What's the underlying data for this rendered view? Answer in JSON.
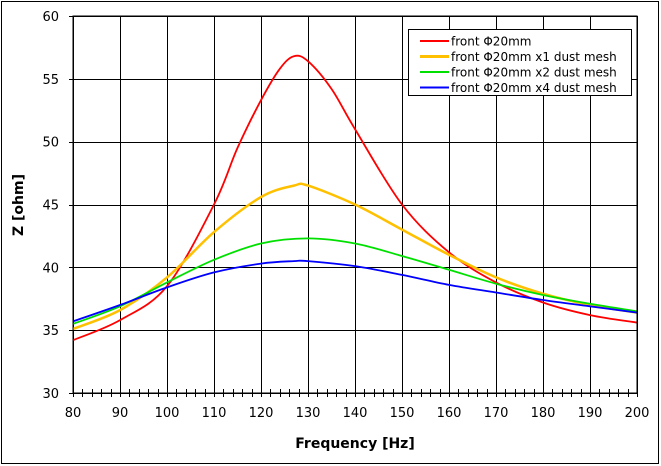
{
  "chart_data": {
    "type": "line",
    "title": "",
    "xlabel": "Frequency [Hz]",
    "ylabel": "Z [ohm]",
    "xlim": [
      80,
      200
    ],
    "ylim": [
      30,
      60
    ],
    "xticks": [
      80,
      90,
      100,
      110,
      120,
      130,
      140,
      150,
      160,
      170,
      180,
      190,
      200
    ],
    "yticks": [
      30,
      35,
      40,
      45,
      50,
      55,
      60
    ],
    "grid": true,
    "legend_position": "top-right",
    "series": [
      {
        "name": "front Φ20mm",
        "color": "#ff0000",
        "x": [
          80,
          90,
          100,
          110,
          115,
          120,
          124,
          127,
          130,
          135,
          140,
          150,
          160,
          170,
          180,
          190,
          200
        ],
        "y": [
          34.2,
          35.8,
          38.5,
          45,
          49.5,
          53.3,
          55.8,
          56.8,
          56.4,
          54.2,
          51,
          45,
          41.2,
          38.8,
          37.2,
          36.2,
          35.6
        ]
      },
      {
        "name": "front Φ20mm x1 dust mesh",
        "color": "#ffc000",
        "x": [
          80,
          90,
          100,
          110,
          120,
          127,
          130,
          140,
          150,
          160,
          170,
          180,
          190,
          200
        ],
        "y": [
          35.1,
          36.6,
          39.2,
          42.8,
          45.6,
          46.5,
          46.5,
          45,
          43,
          41,
          39.2,
          37.9,
          37,
          36.4
        ]
      },
      {
        "name": "front Φ20mm x2 dust mesh",
        "color": "#00e000",
        "x": [
          80,
          90,
          100,
          110,
          120,
          130,
          140,
          150,
          160,
          170,
          180,
          190,
          200
        ],
        "y": [
          35.5,
          36.9,
          38.8,
          40.6,
          41.9,
          42.3,
          41.9,
          40.9,
          39.8,
          38.7,
          37.8,
          37.1,
          36.5
        ]
      },
      {
        "name": "front Φ20mm x4 dust mesh",
        "color": "#0000ff",
        "x": [
          80,
          90,
          100,
          110,
          120,
          127,
          130,
          140,
          150,
          160,
          170,
          180,
          190,
          200
        ],
        "y": [
          35.7,
          37,
          38.4,
          39.6,
          40.3,
          40.5,
          40.5,
          40.1,
          39.4,
          38.6,
          38,
          37.4,
          36.9,
          36.4
        ]
      }
    ]
  }
}
